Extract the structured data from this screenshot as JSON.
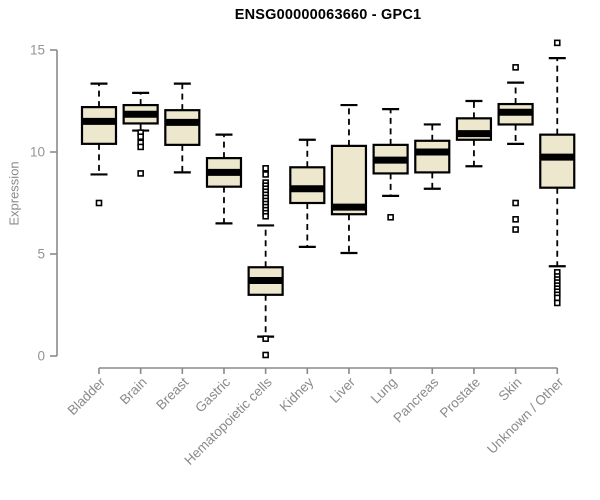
{
  "chart_data": {
    "type": "boxplot",
    "title": "ENSG00000063660 - GPC1",
    "xlabel": "",
    "ylabel": "Expression",
    "ylim": [
      0,
      15.5
    ],
    "yticks": [
      0,
      5,
      10,
      15
    ],
    "grid": false,
    "legend": false,
    "colors": {
      "box_fill": "#EDE7CE",
      "box_line": "#000000",
      "axis": "#8A8A8A",
      "tick_label": "#949494",
      "title": "#000000"
    },
    "categories": [
      "Bladder",
      "Brain",
      "Breast",
      "Gastric",
      "Hematopoietic cells",
      "Kidney",
      "Liver",
      "Lung",
      "Pancreas",
      "Prostate",
      "Skin",
      "Unknown / Other"
    ],
    "series": [
      {
        "category": "Bladder",
        "whisker_low": 8.9,
        "q1": 10.4,
        "median": 11.5,
        "q3": 12.2,
        "whisker_high": 13.35,
        "outliers": [
          7.5
        ]
      },
      {
        "category": "Brain",
        "whisker_low": 11.05,
        "q1": 11.4,
        "median": 11.85,
        "q3": 12.3,
        "whisker_high": 12.9,
        "outliers": [
          10.95,
          10.75,
          10.45,
          10.25,
          8.95
        ]
      },
      {
        "category": "Breast",
        "whisker_low": 9.0,
        "q1": 10.35,
        "median": 11.45,
        "q3": 12.05,
        "whisker_high": 13.35,
        "outliers": []
      },
      {
        "category": "Gastric",
        "whisker_low": 6.5,
        "q1": 8.3,
        "median": 9.0,
        "q3": 9.7,
        "whisker_high": 10.85,
        "outliers": []
      },
      {
        "category": "Hematopoietic cells",
        "whisker_low": 0.95,
        "q1": 3.0,
        "median": 3.7,
        "q3": 4.35,
        "whisker_high": 6.4,
        "outliers": [
          9.2,
          8.9,
          8.5,
          8.35,
          8.2,
          8.05,
          7.9,
          7.75,
          7.6,
          7.45,
          7.3,
          7.15,
          7.0,
          6.85,
          0.85,
          0.05
        ]
      },
      {
        "category": "Kidney",
        "whisker_low": 5.35,
        "q1": 7.5,
        "median": 8.2,
        "q3": 9.25,
        "whisker_high": 10.6,
        "outliers": []
      },
      {
        "category": "Liver",
        "whisker_low": 5.05,
        "q1": 6.95,
        "median": 7.3,
        "q3": 10.3,
        "whisker_high": 12.3,
        "outliers": []
      },
      {
        "category": "Lung",
        "whisker_low": 7.85,
        "q1": 8.95,
        "median": 9.6,
        "q3": 10.35,
        "whisker_high": 12.1,
        "outliers": [
          6.8
        ]
      },
      {
        "category": "Pancreas",
        "whisker_low": 8.2,
        "q1": 9.0,
        "median": 10.0,
        "q3": 10.55,
        "whisker_high": 11.35,
        "outliers": []
      },
      {
        "category": "Prostate",
        "whisker_low": 9.3,
        "q1": 10.6,
        "median": 10.9,
        "q3": 11.65,
        "whisker_high": 12.5,
        "outliers": []
      },
      {
        "category": "Skin",
        "whisker_low": 10.4,
        "q1": 11.35,
        "median": 11.95,
        "q3": 12.35,
        "whisker_high": 13.4,
        "outliers": [
          14.15,
          7.5,
          6.7,
          6.2
        ]
      },
      {
        "category": "Unknown / Other",
        "whisker_low": 4.4,
        "q1": 8.25,
        "median": 9.75,
        "q3": 10.85,
        "whisker_high": 14.6,
        "outliers": [
          15.35,
          4.1,
          3.9,
          3.75,
          3.6,
          3.45,
          3.3,
          3.15,
          3.0,
          2.85,
          2.6
        ]
      }
    ]
  }
}
